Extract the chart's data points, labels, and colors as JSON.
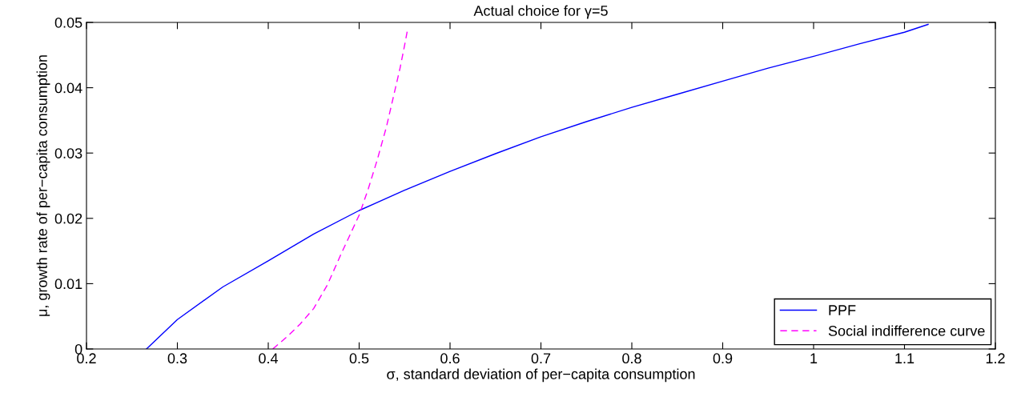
{
  "chart_data": {
    "type": "line",
    "title": "Actual choice for γ=5",
    "xlabel": "σ, standard deviation of per−capita consumption",
    "ylabel": "μ, growth rate of per−capita consumption",
    "series": [
      {
        "name": "PPF",
        "color": "#0000ff",
        "line_style": "solid",
        "x": [
          0.266,
          0.3,
          0.35,
          0.4,
          0.45,
          0.5,
          0.55,
          0.6,
          0.65,
          0.7,
          0.75,
          0.8,
          0.85,
          0.9,
          0.95,
          1.0,
          1.05,
          1.1,
          1.126
        ],
        "values": [
          0,
          0.0045,
          0.0095,
          0.0135,
          0.0176,
          0.0212,
          0.0243,
          0.0272,
          0.0299,
          0.0325,
          0.0348,
          0.037,
          0.039,
          0.041,
          0.043,
          0.0448,
          0.0467,
          0.0485,
          0.0497
        ]
      },
      {
        "name": "Social indifference curve",
        "color": "#ff00ff",
        "line_style": "dashed",
        "x": [
          0.405,
          0.42,
          0.435,
          0.45,
          0.465,
          0.48,
          0.49,
          0.5,
          0.51,
          0.52,
          0.53,
          0.535,
          0.54,
          0.545,
          0.55,
          0.553
        ],
        "values": [
          0,
          0.0018,
          0.0038,
          0.0062,
          0.0098,
          0.0145,
          0.0175,
          0.0205,
          0.0245,
          0.029,
          0.034,
          0.037,
          0.04,
          0.043,
          0.0465,
          0.0487
        ]
      }
    ],
    "xlim": [
      0.2,
      1.2
    ],
    "ylim": [
      0,
      0.05
    ],
    "xticks": [
      0.2,
      0.3,
      0.4,
      0.5,
      0.6,
      0.7,
      0.8,
      0.9,
      1,
      1.1,
      1.2
    ],
    "yticks": [
      0,
      0.01,
      0.02,
      0.03,
      0.04,
      0.05
    ],
    "grid": false,
    "legend": "bottom right"
  }
}
